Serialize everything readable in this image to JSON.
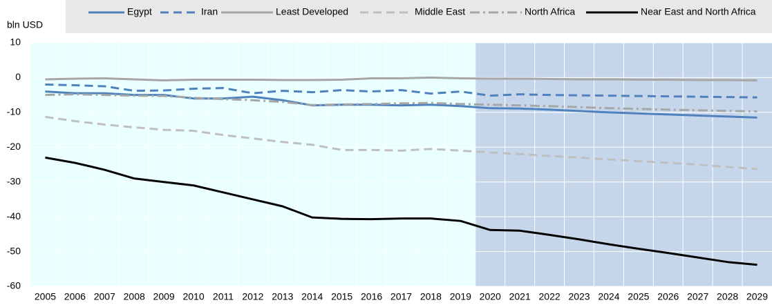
{
  "chart_data": {
    "type": "line",
    "y_label": "bln USD",
    "categories": [
      "2005",
      "2006",
      "2007",
      "2008",
      "2009",
      "2010",
      "2011",
      "2012",
      "2013",
      "2014",
      "2015",
      "2016",
      "2017",
      "2018",
      "2019",
      "2020",
      "2021",
      "2022",
      "2023",
      "2024",
      "2025",
      "2026",
      "2027",
      "2028",
      "2029"
    ],
    "projection_from": "2020",
    "ylim": [
      -60,
      10
    ],
    "yticks": [
      -60,
      -50,
      -40,
      -30,
      -20,
      -10,
      0,
      10
    ],
    "grid": true,
    "series": [
      {
        "name": "Egypt",
        "color": "#4f81bd",
        "style": "solid",
        "values": [
          -4,
          -4.5,
          -4.5,
          -5,
          -5,
          -6,
          -6,
          -5.5,
          -6.5,
          -8,
          -7.8,
          -7.8,
          -8,
          -7.8,
          -8.2,
          -8.8,
          -8.9,
          -9.2,
          -9.6,
          -10,
          -10.3,
          -10.6,
          -10.9,
          -11.2,
          -11.5
        ]
      },
      {
        "name": "Iran",
        "color": "#4f81bd",
        "style": "dashed",
        "values": [
          -2,
          -2.2,
          -2.5,
          -3.8,
          -3.7,
          -3.2,
          -3,
          -4.5,
          -3.8,
          -4.2,
          -3.6,
          -4,
          -3.6,
          -4.6,
          -4,
          -5.2,
          -4.8,
          -5,
          -5.1,
          -5.2,
          -5.3,
          -5.4,
          -5.5,
          -5.6,
          -5.7
        ]
      },
      {
        "name": "Least Developed",
        "color": "#a6a6a6",
        "style": "solid",
        "values": [
          -0.5,
          -0.3,
          -0.2,
          -0.5,
          -0.8,
          -0.6,
          -0.6,
          -0.6,
          -0.7,
          -0.7,
          -0.6,
          -0.2,
          -0.2,
          0,
          -0.2,
          -0.3,
          -0.3,
          -0.4,
          -0.5,
          -0.5,
          -0.6,
          -0.6,
          -0.7,
          -0.7,
          -0.8
        ]
      },
      {
        "name": "Middle East",
        "color": "#bfbfbf",
        "style": "dashed",
        "values": [
          -11.3,
          -12.5,
          -13.5,
          -14.3,
          -15,
          -15.3,
          -16.5,
          -17.5,
          -18.5,
          -19.3,
          -20.8,
          -20.8,
          -21,
          -20.5,
          -21,
          -21.5,
          -22,
          -22.5,
          -23,
          -23.5,
          -24,
          -24.5,
          -25,
          -25.7,
          -26.3
        ]
      },
      {
        "name": "North Africa",
        "color": "#a6a6a6",
        "style": "dashdot",
        "values": [
          -5,
          -4.8,
          -5,
          -5.2,
          -5.3,
          -5.8,
          -6.2,
          -6.5,
          -7,
          -7.9,
          -7.7,
          -7.6,
          -7.4,
          -7.3,
          -7.6,
          -7.8,
          -8,
          -8.2,
          -8.5,
          -8.8,
          -9,
          -9.2,
          -9.4,
          -9.6,
          -9.7
        ]
      },
      {
        "name": "Near East and North Africa",
        "color": "#000000",
        "style": "solid",
        "values": [
          -23,
          -24.5,
          -26.5,
          -29,
          -30,
          -31,
          -33,
          -35,
          -37,
          -40.2,
          -40.6,
          -40.7,
          -40.5,
          -40.5,
          -41.2,
          -43.8,
          -44,
          -45.2,
          -46.5,
          -47.9,
          -49.2,
          -50.4,
          -51.7,
          -53,
          -53.8
        ]
      }
    ]
  }
}
